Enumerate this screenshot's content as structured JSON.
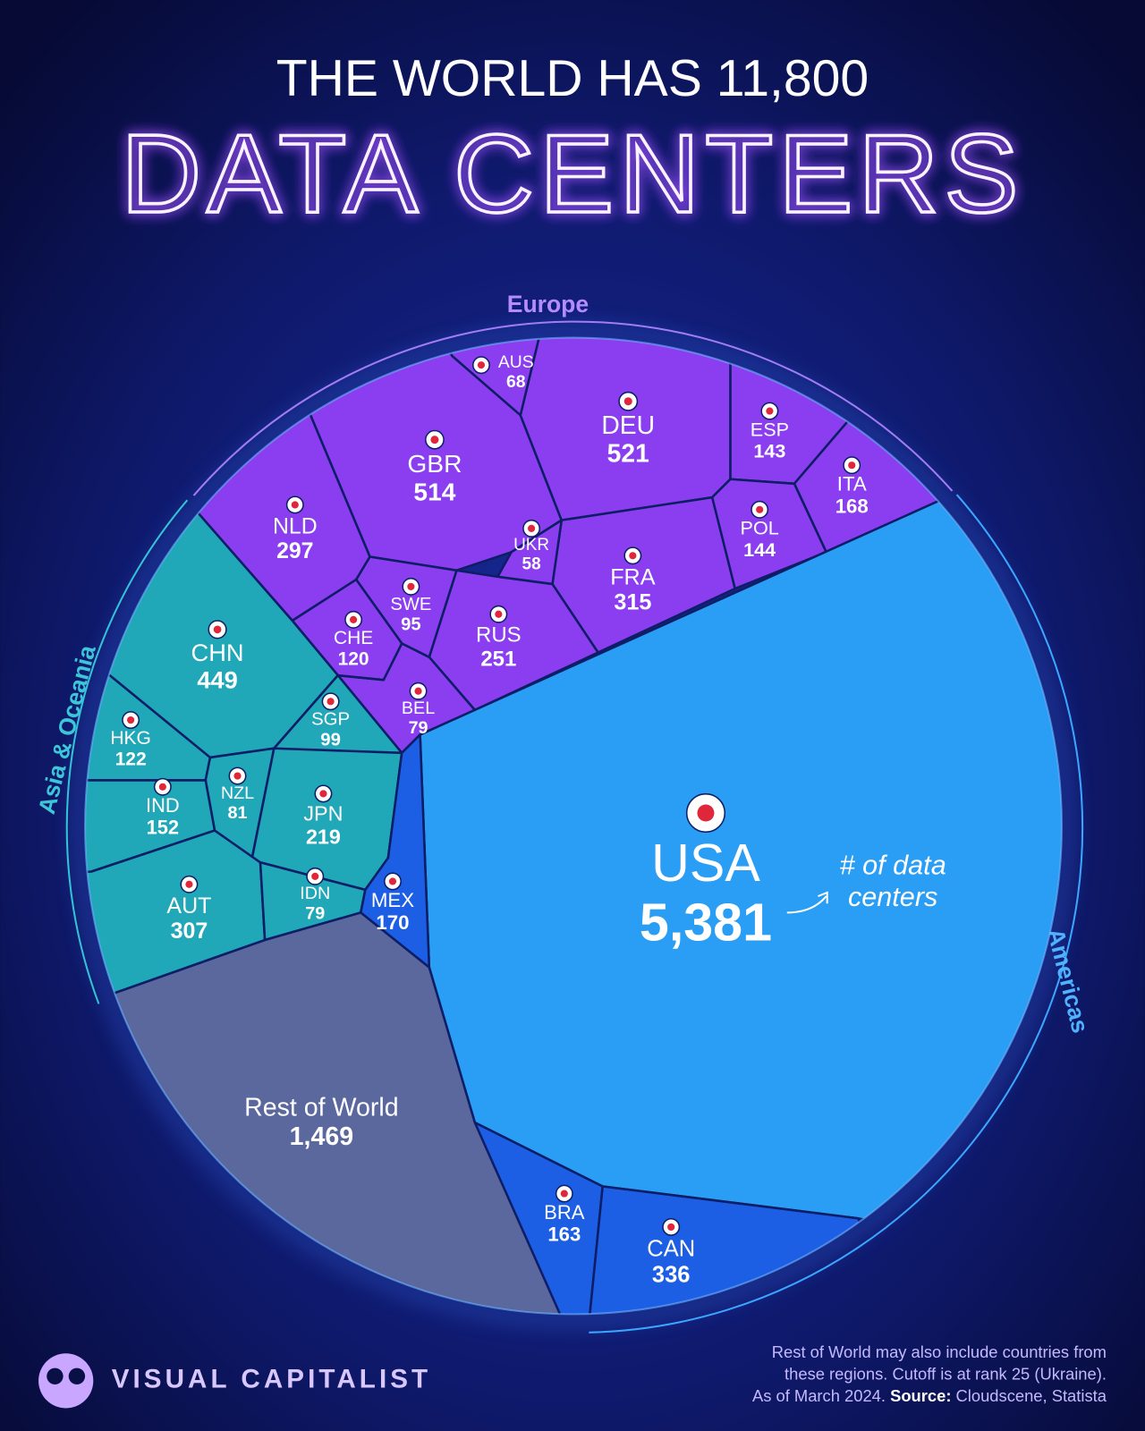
{
  "chart_data": {
    "type": "voronoi",
    "title": "THE WORLD HAS 11,800",
    "subtitle": "DATA CENTERS",
    "groups": [
      {
        "name": "Europe",
        "color": "#8b3ef0",
        "items": [
          {
            "label": "AUS",
            "value": 68
          },
          {
            "label": "GBR",
            "value": 514
          },
          {
            "label": "DEU",
            "value": 521
          },
          {
            "label": "ESP",
            "value": 143
          },
          {
            "label": "ITA",
            "value": 168
          },
          {
            "label": "POL",
            "value": 144
          },
          {
            "label": "FRA",
            "value": 315
          },
          {
            "label": "UKR",
            "value": 58
          },
          {
            "label": "RUS",
            "value": 251
          },
          {
            "label": "BEL",
            "value": 79
          },
          {
            "label": "SWE",
            "value": 95
          },
          {
            "label": "CHE",
            "value": 120
          },
          {
            "label": "NLD",
            "value": 297
          }
        ]
      },
      {
        "name": "Asia & Oceania",
        "color": "#20a7b8",
        "items": [
          {
            "label": "CHN",
            "value": 449
          },
          {
            "label": "SGP",
            "value": 99
          },
          {
            "label": "HKG",
            "value": 122
          },
          {
            "label": "NZL",
            "value": 81
          },
          {
            "label": "JPN",
            "value": 219
          },
          {
            "label": "IND",
            "value": 152
          },
          {
            "label": "AUT",
            "value": 307
          },
          {
            "label": "IDN",
            "value": 79
          }
        ]
      },
      {
        "name": "Americas",
        "color": "#1d5fe4",
        "items": [
          {
            "label": "USA",
            "value": 5381,
            "value_label": "5,381",
            "color": "#2a9df4"
          },
          {
            "label": "MEX",
            "value": 170
          },
          {
            "label": "BRA",
            "value": 163
          },
          {
            "label": "CAN",
            "value": 336
          }
        ]
      }
    ],
    "rest": {
      "label": "Rest of World",
      "value": 1469,
      "value_label": "1,469",
      "color": "#5a689e"
    },
    "annotation_lines": [
      "# of data",
      "centers"
    ],
    "note_lines": [
      "Rest of World may also include countries from",
      "these regions. Cutoff is at rank 25 (Ukraine).",
      "As of March 2024."
    ],
    "source_label": "Source:",
    "source": "Cloudscene, Statista",
    "brand": "VISUAL CAPITALIST"
  }
}
